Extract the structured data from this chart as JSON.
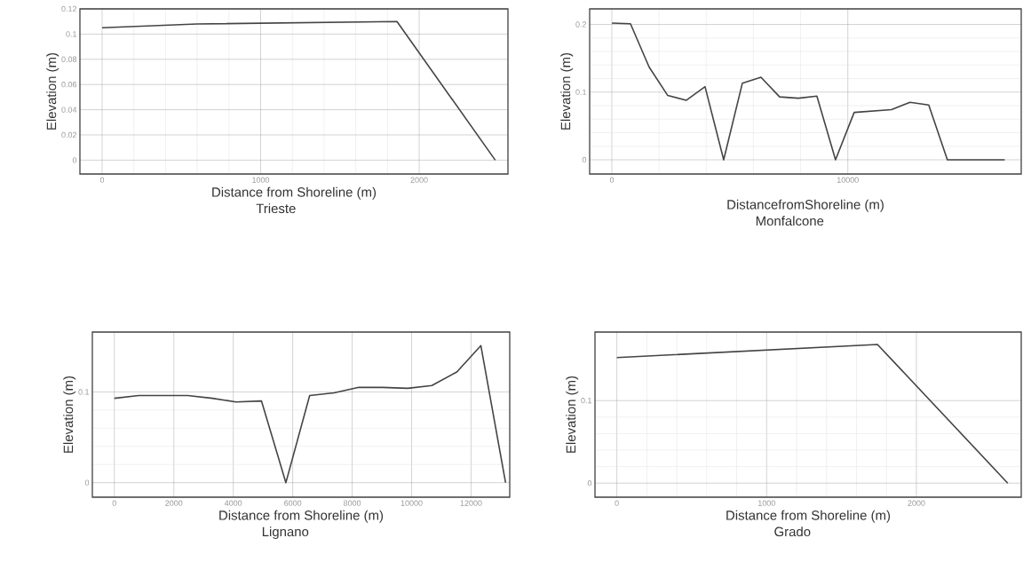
{
  "chart_data": [
    {
      "type": "line",
      "title": "Trieste",
      "xlabel": "Distance from Shoreline (m)",
      "ylabel": "Elevation (m)",
      "color": "#444444",
      "x": [
        0,
        600,
        1860,
        2480
      ],
      "values": [
        0.105,
        0.108,
        0.11,
        0
      ],
      "xlim": [
        -140,
        2560
      ],
      "ylim": [
        -0.011,
        0.12
      ],
      "xticks": [
        0,
        1000,
        2000
      ],
      "yticks": [
        0,
        0.02,
        0.04,
        0.06,
        0.08,
        0.1,
        0.12
      ],
      "grid": true
    },
    {
      "type": "line",
      "title": "Monfalcone",
      "xlabel": "DistancefromShoreline (m)",
      "ylabel": "Elevation (m)",
      "color": "#444444",
      "x": [
        0,
        790,
        1580,
        2370,
        3160,
        3950,
        4740,
        5530,
        6320,
        7110,
        7900,
        8690,
        9480,
        10270,
        11060,
        11850,
        12640,
        13430,
        14220,
        16650
      ],
      "values": [
        0.202,
        0.201,
        0.137,
        0.095,
        0.088,
        0.108,
        0,
        0.113,
        0.122,
        0.093,
        0.091,
        0.094,
        0,
        0.07,
        0.072,
        0.074,
        0.085,
        0.081,
        0,
        0
      ],
      "xlim": [
        -940,
        17350
      ],
      "ylim": [
        -0.021,
        0.223
      ],
      "xticks": [
        0,
        10000
      ],
      "yticks": [
        0,
        0.1,
        0.2
      ],
      "grid": true
    },
    {
      "type": "line",
      "title": "Lignano",
      "xlabel": "Distance from Shoreline (m)",
      "ylabel": "Elevation (m)",
      "color": "#444444",
      "x": [
        0,
        820,
        1650,
        2470,
        3300,
        4090,
        4950,
        5770,
        6570,
        7390,
        8220,
        9030,
        9870,
        10680,
        11520,
        12330,
        13160
      ],
      "values": [
        0.093,
        0.096,
        0.096,
        0.096,
        0.093,
        0.089,
        0.09,
        0,
        0.096,
        0.099,
        0.105,
        0.105,
        0.104,
        0.107,
        0.122,
        0.151,
        0
      ],
      "xlim": [
        -740,
        13300
      ],
      "ylim": [
        -0.016,
        0.166
      ],
      "xticks": [
        0,
        2000,
        4000,
        6000,
        8000,
        10000,
        12000
      ],
      "yticks": [
        0,
        0.1
      ],
      "grid": true
    },
    {
      "type": "line",
      "title": "Grado",
      "xlabel": "Distance from Shoreline (m)",
      "ylabel": "Elevation (m)",
      "color": "#444444",
      "x": [
        0,
        1740,
        2610
      ],
      "values": [
        0.152,
        0.168,
        0
      ],
      "xlim": [
        -146,
        2700
      ],
      "ylim": [
        -0.017,
        0.183
      ],
      "xticks": [
        0,
        1000,
        2000
      ],
      "yticks": [
        0,
        0.1
      ],
      "grid": true
    }
  ]
}
